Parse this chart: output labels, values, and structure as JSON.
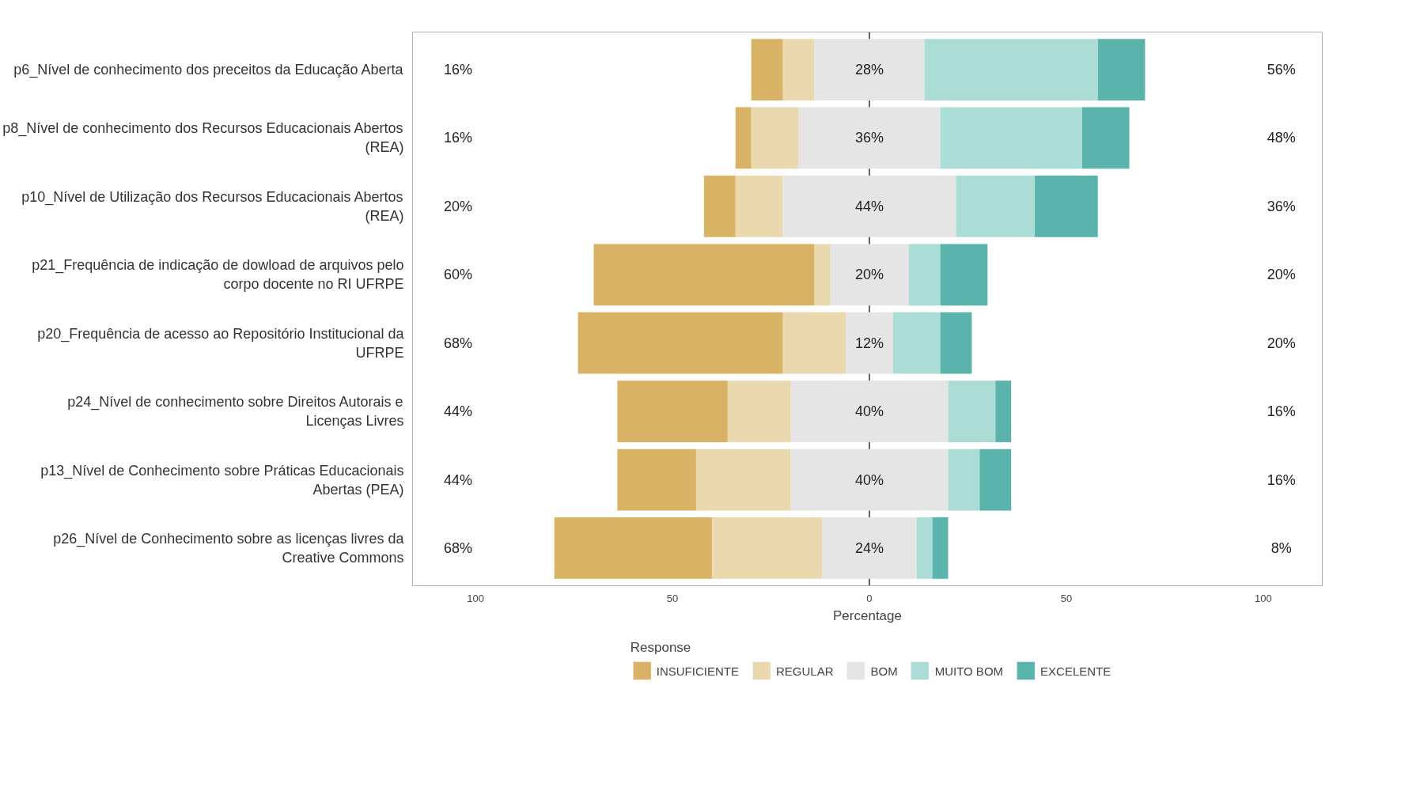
{
  "chart_data": {
    "type": "bar",
    "orientation": "horizontal",
    "stacked": true,
    "categories": [
      "p6_Nível de conhecimento dos preceitos da Educação Aberta",
      "p8_Nível de conhecimento dos Recursos Educacionais Abertos (REA)",
      "p10_Nível de Utilização dos Recursos Educacionais Abertos (REA)",
      "p21_Frequência de indicação de dowload de arquivos pelo corpo docente no RI UFRPE",
      "p20_Frequência de acesso ao Repositório Institucional da UFRPE",
      "p24_Nível de conhecimento sobre Direitos Autorais e Licenças Livres",
      "p13_Nível de Conhecimento sobre Práticas Educacionais Abertas (PEA)",
      "p26_Nível de Conhecimento sobre as licenças livres da Creative Commons"
    ],
    "series": [
      {
        "color": "#e5e5e5",
        "values": [
          -14,
          -18,
          -22,
          -10,
          -6,
          -20,
          -20,
          -12
        ]
      },
      {
        "name": "REGULAR",
        "color": "#ead8ae",
        "values": [
          -8,
          -12,
          -12,
          -4,
          -16,
          -16,
          -24,
          -28
        ]
      },
      {
        "name": "INSUFICIENTE",
        "color": "#d9b365",
        "values": [
          -8,
          -4,
          -8,
          -56,
          -52,
          -28,
          -20,
          -40
        ]
      },
      {
        "name": "BOM",
        "color": "#e5e5e5",
        "values": [
          14,
          18,
          22,
          10,
          6,
          20,
          20,
          12
        ]
      },
      {
        "name": "MUITO BOM",
        "color": "#acdcd6",
        "values": [
          44,
          36,
          20,
          8,
          12,
          12,
          8,
          4
        ]
      },
      {
        "name": "EXCELENTE",
        "color": "#5ab4ac",
        "values": [
          12,
          12,
          16,
          12,
          8,
          4,
          8,
          4
        ]
      }
    ],
    "xlim": [
      -116,
      115
    ],
    "xticks": [
      {
        "value": -100,
        "label": "100"
      },
      {
        "value": -50,
        "label": "50"
      },
      0,
      50,
      100
    ],
    "xlabel": "Percentage",
    "legend_title": "Response",
    "legend": "bottom",
    "grid": false,
    "ref_lines": [
      {
        "axis": "x",
        "value": 0,
        "label": null
      }
    ],
    "annotations": [
      "16%",
      "28%",
      "56%",
      "16%",
      "36%",
      "48%",
      "20%",
      "44%",
      "36%",
      "60%",
      "20%",
      "20%",
      "68%",
      "12%",
      "20%",
      "44%",
      "40%",
      "16%",
      "44%",
      "40%",
      "16%",
      "68%",
      "24%",
      "8%"
    ]
  }
}
